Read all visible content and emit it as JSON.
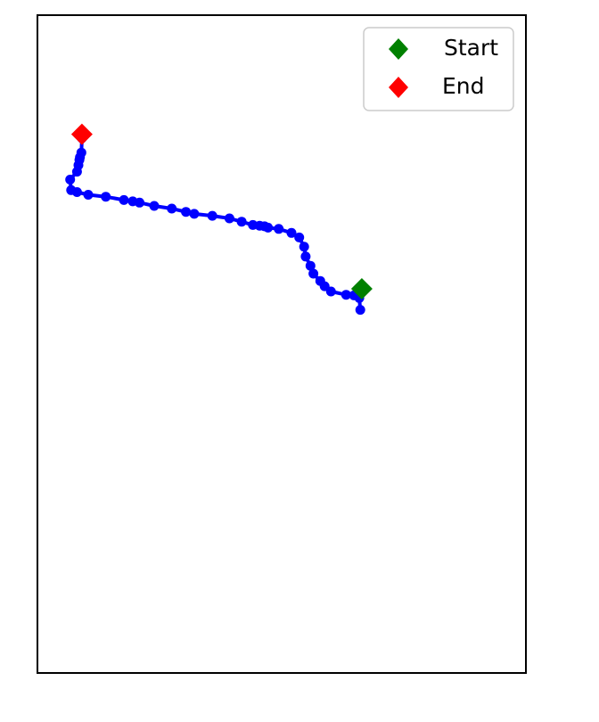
{
  "chart_data": {
    "type": "scatter",
    "title": "",
    "xlabel": "",
    "ylabel": "",
    "xlim": [
      0,
      100
    ],
    "ylim": [
      0,
      100
    ],
    "axis_ticks": "none",
    "grid": false,
    "legend_placement": "top-right",
    "series": [
      {
        "type": "line",
        "color": "#0000ff",
        "marker": "circle",
        "points": [
          [
            66.1,
            55.2
          ],
          [
            65.9,
            57.0
          ],
          [
            65.7,
            57.3
          ],
          [
            64.8,
            57.4
          ],
          [
            63.2,
            57.5
          ],
          [
            60.1,
            58.0
          ],
          [
            58.8,
            58.8
          ],
          [
            57.9,
            59.6
          ],
          [
            56.5,
            60.7
          ],
          [
            55.9,
            61.9
          ],
          [
            54.9,
            63.3
          ],
          [
            54.6,
            64.8
          ],
          [
            53.6,
            66.2
          ],
          [
            52.0,
            66.9
          ],
          [
            49.4,
            67.5
          ],
          [
            47.2,
            67.7
          ],
          [
            46.5,
            67.9
          ],
          [
            45.5,
            68.0
          ],
          [
            44.1,
            68.1
          ],
          [
            41.8,
            68.6
          ],
          [
            39.3,
            69.1
          ],
          [
            35.8,
            69.5
          ],
          [
            32.1,
            69.8
          ],
          [
            30.4,
            70.1
          ],
          [
            27.5,
            70.6
          ],
          [
            23.9,
            71.0
          ],
          [
            20.9,
            71.5
          ],
          [
            19.5,
            71.7
          ],
          [
            17.7,
            71.9
          ],
          [
            14.0,
            72.4
          ],
          [
            10.4,
            72.7
          ],
          [
            8.1,
            73.1
          ],
          [
            6.9,
            73.4
          ],
          [
            6.7,
            75.0
          ],
          [
            8.1,
            76.2
          ],
          [
            8.4,
            77.2
          ],
          [
            8.6,
            78.0
          ],
          [
            8.7,
            78.4
          ],
          [
            9.0,
            79.1
          ],
          [
            9.1,
            81.3
          ]
        ]
      }
    ],
    "start": {
      "label": "Start",
      "color": "#008000",
      "marker": "diamond",
      "x": 66.4,
      "y": 58.4
    },
    "end": {
      "label": "End",
      "color": "#ff0000",
      "marker": "diamond",
      "x": 9.1,
      "y": 81.9
    }
  }
}
